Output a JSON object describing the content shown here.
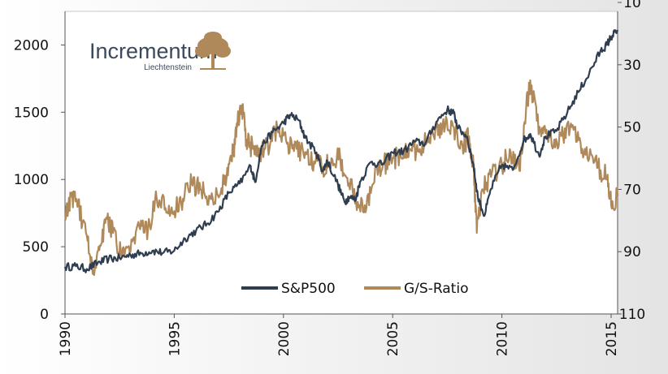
{
  "logo": {
    "name": "Incrementum",
    "sub": "Liechtenstein",
    "text_color": "#3a4a5c",
    "tree_color": "#b0895a"
  },
  "chart_data": {
    "type": "line",
    "title": "",
    "xlabel": "",
    "ylabel": "",
    "x_ticks": [
      "1990",
      "1995",
      "2000",
      "2005",
      "2010",
      "2015"
    ],
    "x_range": [
      1990,
      2015.3
    ],
    "y_left_ticks": [
      "0",
      "500",
      "1000",
      "1500",
      "2000"
    ],
    "y_left_range": [
      0,
      2250
    ],
    "y_right_ticks": [
      "10",
      "30",
      "50",
      "70",
      "90",
      "110"
    ],
    "y_right_range": [
      110,
      10
    ],
    "y_right_inverted": true,
    "grid": false,
    "legend_position": "bottom-center",
    "series": [
      {
        "name": "S&P500",
        "axis": "left",
        "color": "#2f3d50",
        "x": [
          1990.0,
          1990.5,
          1991.0,
          1991.5,
          1992.0,
          1992.5,
          1993.0,
          1993.5,
          1994.0,
          1994.5,
          1995.0,
          1995.5,
          1996.0,
          1996.5,
          1997.0,
          1997.5,
          1998.0,
          1998.5,
          1998.7,
          1999.0,
          1999.5,
          2000.0,
          2000.3,
          2000.7,
          2001.0,
          2001.5,
          2001.8,
          2002.0,
          2002.5,
          2002.8,
          2003.0,
          2003.3,
          2003.5,
          2004.0,
          2004.5,
          2005.0,
          2005.5,
          2006.0,
          2006.5,
          2007.0,
          2007.5,
          2007.8,
          2008.0,
          2008.4,
          2008.7,
          2008.9,
          2009.2,
          2009.5,
          2010.0,
          2010.5,
          2011.0,
          2011.3,
          2011.7,
          2012.0,
          2012.5,
          2013.0,
          2013.5,
          2014.0,
          2014.5,
          2014.8,
          2015.0,
          2015.3
        ],
        "values": [
          350,
          355,
          335,
          380,
          410,
          415,
          440,
          450,
          470,
          455,
          470,
          560,
          620,
          670,
          760,
          900,
          970,
          1100,
          980,
          1250,
          1350,
          1420,
          1480,
          1440,
          1310,
          1200,
          1060,
          1140,
          960,
          830,
          870,
          850,
          980,
          1130,
          1110,
          1200,
          1210,
          1280,
          1270,
          1430,
          1520,
          1490,
          1380,
          1320,
          1100,
          870,
          730,
          930,
          1110,
          1070,
          1290,
          1340,
          1180,
          1320,
          1360,
          1500,
          1650,
          1790,
          1950,
          2000,
          2060,
          2110
        ]
      },
      {
        "name": "G/S-Ratio",
        "axis": "right",
        "color": "#b0895a",
        "x": [
          1990.0,
          1990.3,
          1990.6,
          1991.0,
          1991.3,
          1991.6,
          1991.9,
          1992.2,
          1992.6,
          1993.0,
          1993.4,
          1993.8,
          1994.2,
          1994.6,
          1995.0,
          1995.4,
          1995.8,
          1996.2,
          1996.6,
          1997.0,
          1997.4,
          1997.7,
          1997.9,
          1998.1,
          1998.3,
          1998.6,
          1999.0,
          1999.4,
          1999.8,
          2000.2,
          2000.6,
          2001.0,
          2001.4,
          2001.8,
          2002.2,
          2002.6,
          2003.0,
          2003.4,
          2003.8,
          2004.2,
          2004.6,
          2005.0,
          2005.4,
          2005.8,
          2006.2,
          2006.6,
          2007.0,
          2007.4,
          2007.8,
          2008.2,
          2008.5,
          2008.7,
          2008.85,
          2009.1,
          2009.5,
          2010.0,
          2010.4,
          2010.8,
          2011.1,
          2011.3,
          2011.6,
          2012.0,
          2012.4,
          2012.8,
          2013.2,
          2013.6,
          2014.0,
          2014.4,
          2014.8,
          2015.0,
          2015.3
        ],
        "values": [
          80,
          72,
          75,
          85,
          96,
          88,
          79,
          84,
          92,
          90,
          82,
          83,
          73,
          76,
          77,
          73,
          68,
          70,
          72,
          72,
          66,
          58,
          48,
          43,
          54,
          57,
          58,
          55,
          50,
          55,
          57,
          58,
          61,
          63,
          60,
          60,
          68,
          74,
          76,
          63,
          62,
          60,
          60,
          57,
          58,
          53,
          50,
          50,
          50,
          56,
          53,
          62,
          84,
          70,
          66,
          62,
          58,
          64,
          45,
          35,
          48,
          52,
          54,
          53,
          50,
          55,
          60,
          63,
          66,
          75,
          72
        ]
      }
    ]
  }
}
